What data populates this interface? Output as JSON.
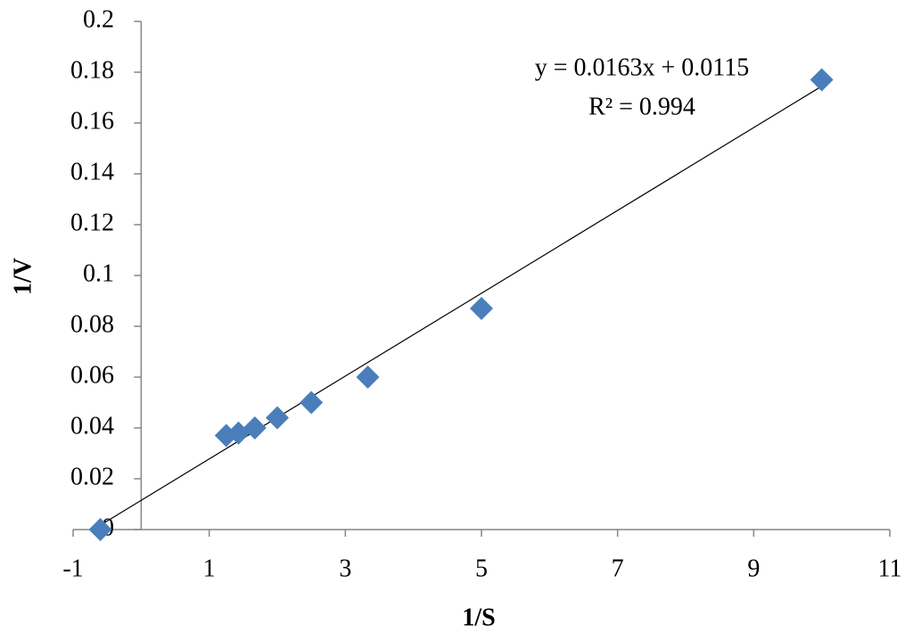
{
  "chart_data": {
    "type": "scatter",
    "xlabel": "1/S",
    "ylabel": "1/V",
    "series": [
      {
        "color": "#4a7ebb",
        "x": [
          -0.6,
          1.25,
          1.43,
          1.67,
          2.0,
          2.5,
          3.33,
          5.0,
          10.0
        ],
        "values": [
          0,
          0.037,
          0.038,
          0.04,
          0.044,
          0.05,
          0.06,
          0.087,
          0.177
        ]
      }
    ],
    "trendline": {
      "slope": 0.0163,
      "intercept": 0.0115,
      "equation": "y = 0.0163x + 0.0115",
      "r2": "R² = 0.994"
    },
    "xlim": [
      -1,
      11
    ],
    "xticks": [
      -1,
      1,
      3,
      5,
      7,
      9,
      11
    ],
    "ylim": [
      0,
      0.2
    ],
    "yticks": [
      0,
      0.02,
      0.04,
      0.06,
      0.08,
      0.1,
      0.12,
      0.14,
      0.16,
      0.18,
      0.2
    ]
  }
}
